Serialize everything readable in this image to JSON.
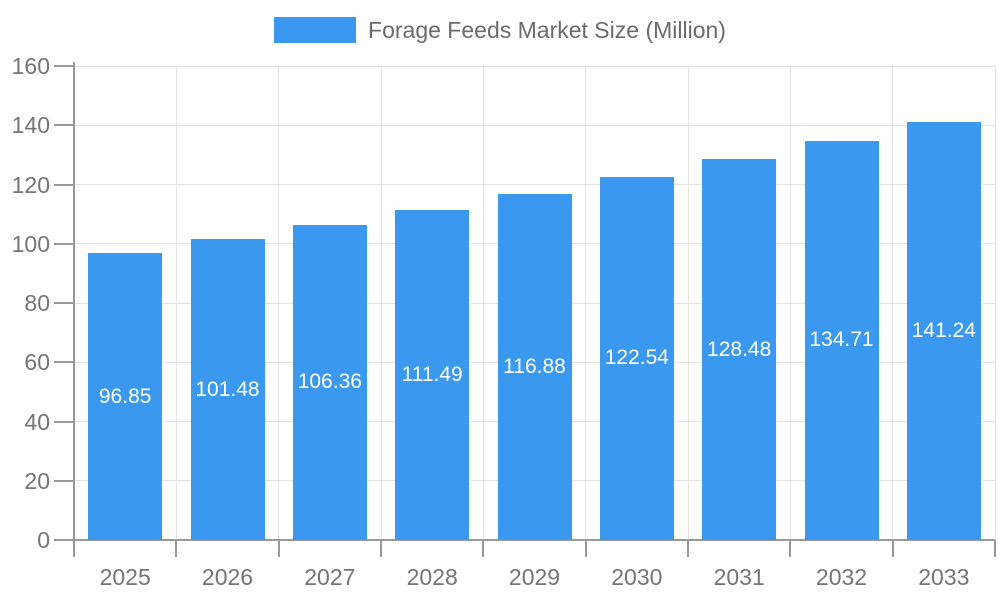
{
  "legend": {
    "label": "Forage Feeds Market Size (Million)"
  },
  "chart_data": {
    "type": "bar",
    "title": "Forage Feeds Market Size (Million)",
    "categories": [
      "2025",
      "2026",
      "2027",
      "2028",
      "2029",
      "2030",
      "2031",
      "2032",
      "2033"
    ],
    "values": [
      96.85,
      101.48,
      106.36,
      111.49,
      116.88,
      122.54,
      128.48,
      134.71,
      141.24
    ],
    "xlabel": "",
    "ylabel": "",
    "ylim": [
      0,
      160
    ],
    "ytick_step": 20,
    "grid": true,
    "legend_position": "top",
    "value_label_position": "inside-center"
  },
  "colors": {
    "bar": "#3A99EE",
    "grid": "#E3E3E3",
    "axis": "#999999",
    "tick_label": "#757575",
    "legend_text": "#6B6B6B",
    "value_label": "#FFFFFF",
    "background": "#FFFFFF"
  }
}
